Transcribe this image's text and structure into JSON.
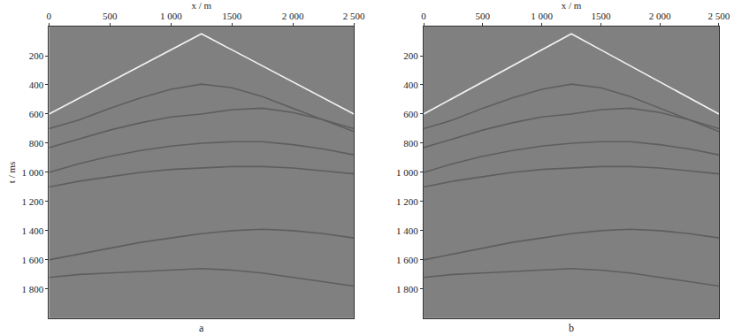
{
  "chart_data": [
    {
      "type": "line",
      "title": "a",
      "x_label": "x / m",
      "y_label": "t / ms",
      "x": [
        0,
        250,
        500,
        750,
        1000,
        1250,
        1500,
        1750,
        2000,
        2250,
        2500
      ],
      "series": [
        {
          "color": "#f2f2f2",
          "values": [
            600,
            490,
            380,
            270,
            160,
            50,
            160,
            270,
            380,
            490,
            600
          ]
        },
        {
          "color": "#5e5e5e",
          "values": [
            700,
            640,
            560,
            490,
            430,
            395,
            420,
            480,
            560,
            640,
            720
          ]
        },
        {
          "color": "#5e5e5e",
          "values": [
            830,
            770,
            710,
            660,
            620,
            600,
            570,
            560,
            590,
            640,
            700
          ]
        },
        {
          "color": "#5e5e5e",
          "values": [
            1000,
            940,
            890,
            850,
            820,
            800,
            790,
            790,
            810,
            840,
            880
          ]
        },
        {
          "color": "#5e5e5e",
          "values": [
            1100,
            1060,
            1030,
            1000,
            980,
            970,
            960,
            960,
            970,
            990,
            1010
          ]
        },
        {
          "color": "#5e5e5e",
          "values": [
            1600,
            1560,
            1520,
            1480,
            1450,
            1420,
            1400,
            1390,
            1400,
            1420,
            1450
          ]
        },
        {
          "color": "#5e5e5e",
          "values": [
            1720,
            1700,
            1690,
            1680,
            1670,
            1660,
            1670,
            1690,
            1720,
            1750,
            1780
          ]
        }
      ],
      "xlim": [
        0,
        2500
      ],
      "xticks": [
        0,
        500,
        {
          "value": 1000,
          "label": "1 000"
        },
        1500,
        {
          "value": 2000,
          "label": "2 000"
        },
        {
          "value": 2500,
          "label": "2 500"
        }
      ],
      "ylim": [
        2000,
        0
      ],
      "yticks": [
        200,
        400,
        600,
        800,
        {
          "value": 1000,
          "label": "1 000"
        },
        {
          "value": 1200,
          "label": "1 200"
        },
        {
          "value": 1400,
          "label": "1 400"
        },
        {
          "value": 1600,
          "label": "1 600"
        },
        {
          "value": 1800,
          "label": "1 800"
        }
      ],
      "grid": false
    },
    {
      "type": "line",
      "title": "b",
      "x_label": "x / m",
      "x": [
        0,
        250,
        500,
        750,
        1000,
        1250,
        1500,
        1750,
        2000,
        2250,
        2500
      ],
      "series": [
        {
          "color": "#f2f2f2",
          "values": [
            600,
            490,
            380,
            270,
            160,
            50,
            160,
            270,
            380,
            490,
            600
          ]
        },
        {
          "color": "#5e5e5e",
          "values": [
            700,
            640,
            560,
            490,
            430,
            395,
            420,
            480,
            560,
            640,
            720
          ]
        },
        {
          "color": "#5e5e5e",
          "values": [
            830,
            770,
            710,
            660,
            620,
            600,
            570,
            560,
            590,
            640,
            700
          ]
        },
        {
          "color": "#5e5e5e",
          "values": [
            1000,
            940,
            890,
            850,
            820,
            800,
            790,
            790,
            810,
            840,
            880
          ]
        },
        {
          "color": "#5e5e5e",
          "values": [
            1100,
            1060,
            1030,
            1000,
            980,
            970,
            960,
            960,
            970,
            990,
            1010
          ]
        },
        {
          "color": "#5e5e5e",
          "values": [
            1600,
            1560,
            1520,
            1480,
            1450,
            1420,
            1400,
            1390,
            1400,
            1420,
            1450
          ]
        },
        {
          "color": "#5e5e5e",
          "values": [
            1720,
            1700,
            1690,
            1680,
            1670,
            1660,
            1670,
            1690,
            1720,
            1750,
            1780
          ]
        }
      ],
      "xlim": [
        0,
        2500
      ],
      "xticks": [
        0,
        500,
        {
          "value": 1000,
          "label": "1 000"
        },
        1500,
        {
          "value": 2000,
          "label": "2 000"
        },
        {
          "value": 2500,
          "label": "2 500"
        }
      ],
      "ylim": [
        2000,
        0
      ],
      "yticks": [
        200,
        400,
        600,
        800,
        {
          "value": 1000,
          "label": "1 000"
        },
        {
          "value": 1200,
          "label": "1 200"
        },
        {
          "value": 1400,
          "label": "1 400"
        },
        {
          "value": 1600,
          "label": "1 600"
        },
        {
          "value": 1800,
          "label": "1 800"
        }
      ],
      "grid": false
    }
  ]
}
